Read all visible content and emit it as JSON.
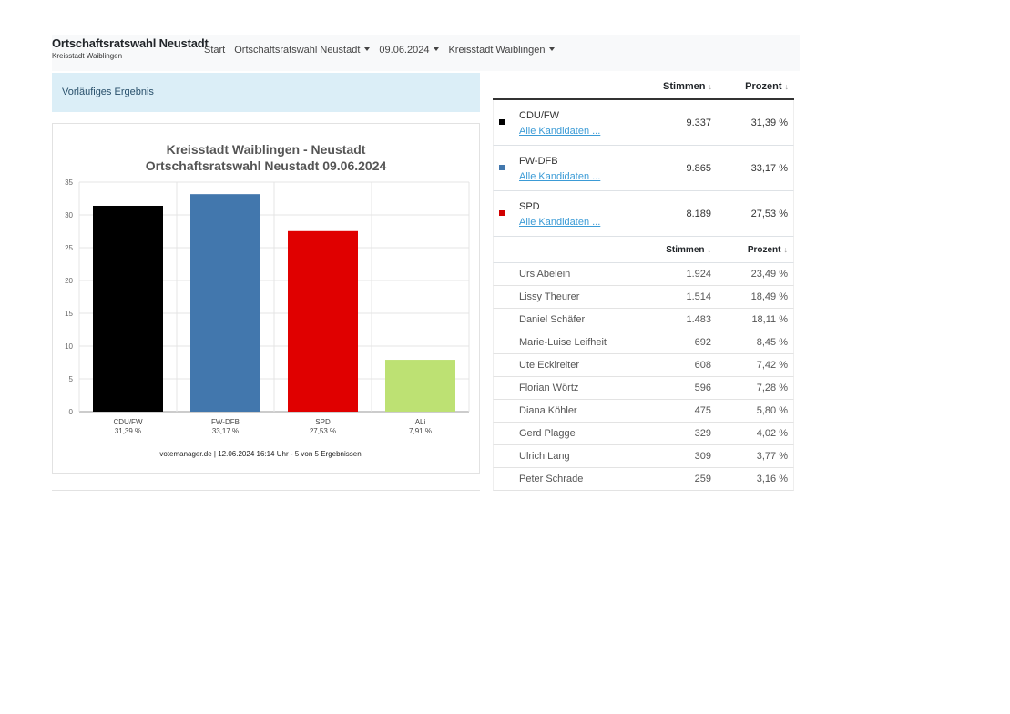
{
  "navbar": {
    "title": "Ortschaftsratswahl Neustadt",
    "subtitle": "Kreisstadt Waiblingen",
    "items": [
      {
        "label": "Start",
        "dropdown": false
      },
      {
        "label": "Ortschaftsratswahl Neustadt",
        "dropdown": true
      },
      {
        "label": "09.06.2024",
        "dropdown": true
      },
      {
        "label": "Kreisstadt Waiblingen",
        "dropdown": true
      }
    ]
  },
  "banner": {
    "label": "Vorläufiges Ergebnis"
  },
  "chart_data": {
    "type": "bar",
    "title": "Kreisstadt Waiblingen - Neustadt",
    "subtitle": "Ortschaftsratswahl Neustadt 09.06.2024",
    "categories": [
      "CDU/FW",
      "FW-DFB",
      "SPD",
      "ALi"
    ],
    "value_labels": [
      "31,39 %",
      "33,17 %",
      "27,53 %",
      "7,91 %"
    ],
    "values": [
      31.39,
      33.17,
      27.53,
      7.91
    ],
    "colors": [
      "#000000",
      "#4277ad",
      "#e00000",
      "#bde173"
    ],
    "ylim": [
      0,
      35
    ],
    "yticks": [
      0,
      5,
      10,
      15,
      20,
      25,
      30,
      35
    ],
    "grid": true,
    "footer": "votemanager.de | 12.06.2024 16:14 Uhr - 5 von 5 Ergebnissen"
  },
  "table": {
    "header": {
      "stimmen": "Stimmen",
      "prozent": "Prozent",
      "sort_icon": "↓"
    },
    "parties": [
      {
        "name": "CDU/FW",
        "link": "Alle Kandidaten ...",
        "stimmen": "9.337",
        "prozent": "31,39 %",
        "color": "#000000"
      },
      {
        "name": "FW-DFB",
        "link": "Alle Kandidaten ...",
        "stimmen": "9.865",
        "prozent": "33,17 %",
        "color": "#4277ad"
      },
      {
        "name": "SPD",
        "link": "Alle Kandidaten ...",
        "stimmen": "8.189",
        "prozent": "27,53 %",
        "color": "#d10000"
      }
    ],
    "subheader": {
      "stimmen": "Stimmen",
      "prozent": "Prozent",
      "sort_icon": "↓"
    },
    "candidates": [
      {
        "name": "Urs Abelein",
        "stimmen": "1.924",
        "prozent": "23,49 %"
      },
      {
        "name": "Lissy Theurer",
        "stimmen": "1.514",
        "prozent": "18,49 %"
      },
      {
        "name": "Daniel Schäfer",
        "stimmen": "1.483",
        "prozent": "18,11 %"
      },
      {
        "name": "Marie-Luise Leifheit",
        "stimmen": "692",
        "prozent": "8,45 %"
      },
      {
        "name": "Ute Ecklreiter",
        "stimmen": "608",
        "prozent": "7,42 %"
      },
      {
        "name": "Florian Wörtz",
        "stimmen": "596",
        "prozent": "7,28 %"
      },
      {
        "name": "Diana Köhler",
        "stimmen": "475",
        "prozent": "5,80 %"
      },
      {
        "name": "Gerd Plagge",
        "stimmen": "329",
        "prozent": "4,02 %"
      },
      {
        "name": "Ulrich Lang",
        "stimmen": "309",
        "prozent": "3,77 %"
      },
      {
        "name": "Peter Schrade",
        "stimmen": "259",
        "prozent": "3,16 %"
      }
    ]
  }
}
